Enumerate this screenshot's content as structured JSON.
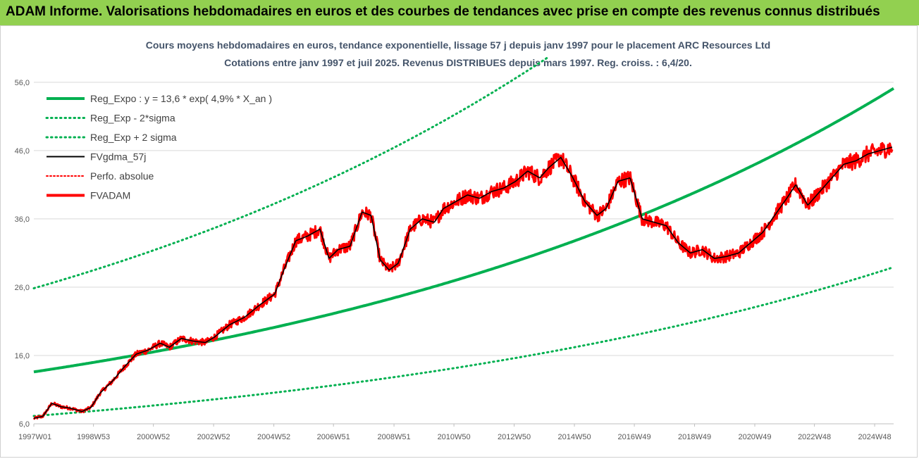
{
  "header": {
    "title": "ADAM Informe. Valorisations hebdomadaires en euros et des courbes de tendances avec prise en compte des revenus connus distribués"
  },
  "chart_data": {
    "type": "line",
    "title": "Cours moyens hebdomadaires en euros, tendance exponentielle, lissage 57 j depuis janv 1997 pour le placement ARC Resources Ltd",
    "subtitle": "Cotations entre janv 1997 et juil 2025. Revenus DISTRIBUES depuis mars 1997. Reg. croiss. : 6,4/20.",
    "xlabel": "",
    "ylabel": "",
    "x_range": [
      1997.0,
      2025.55
    ],
    "ylim": [
      6,
      60
    ],
    "y_ticks": [
      6,
      16,
      26,
      36,
      46,
      56
    ],
    "y_tick_labels": [
      "6,0",
      "16,0",
      "26,0",
      "36,0",
      "46,0",
      "56,0"
    ],
    "x_ticks": [
      1997.0,
      1998.98,
      2000.97,
      2002.97,
      2004.97,
      2006.95,
      2008.96,
      2010.95,
      2012.95,
      2014.95,
      2016.94,
      2018.94,
      2020.94,
      2022.92,
      2024.92
    ],
    "x_tick_labels": [
      "1997W01",
      "1998W53",
      "2000W52",
      "2002W52",
      "2004W52",
      "2006W51",
      "2008W51",
      "2010W50",
      "2012W50",
      "2014W50",
      "2016W49",
      "2018W49",
      "2020W49",
      "2022W48",
      "2024W48"
    ],
    "grid": "horizontal",
    "legend_position": "top-left",
    "regression": {
      "a": 13.6,
      "rate": 0.049,
      "sigma_factor_lower": 0.525,
      "sigma_factor_upper": 1.9
    },
    "series": [
      {
        "name": "Reg_Expo : y = 13,6 * exp( 4,9% *  X_an )",
        "style": "solid",
        "color": "#00b050",
        "kind": "reg"
      },
      {
        "name": "Reg_Exp - 2*sigma",
        "style": "dotted",
        "color": "#00b050",
        "kind": "reg_low"
      },
      {
        "name": "Reg_Exp + 2 sigma",
        "style": "dotted",
        "color": "#00b050",
        "kind": "reg_high"
      },
      {
        "name": "FVgdma_57j",
        "style": "solid",
        "color": "#000000",
        "kind": "smooth"
      },
      {
        "name": "Perfo. absolue",
        "style": "dotted",
        "color": "#ff0000",
        "kind": "perf"
      },
      {
        "name": "FVADAM",
        "style": "solid",
        "color": "#ff0000",
        "kind": "price",
        "x": [
          1997.0,
          1997.3,
          1997.6,
          1997.9,
          1998.2,
          1998.6,
          1998.9,
          1999.2,
          1999.6,
          2000.0,
          2000.4,
          2000.8,
          2001.2,
          2001.5,
          2001.9,
          2002.3,
          2002.7,
          2003.0,
          2003.5,
          2004.0,
          2004.5,
          2005.0,
          2005.3,
          2005.7,
          2006.1,
          2006.5,
          2006.8,
          2007.1,
          2007.5,
          2007.9,
          2008.2,
          2008.5,
          2008.8,
          2009.1,
          2009.5,
          2009.9,
          2010.3,
          2010.6,
          2011.0,
          2011.4,
          2011.8,
          2012.2,
          2012.6,
          2013.0,
          2013.4,
          2013.8,
          2014.1,
          2014.5,
          2014.9,
          2015.3,
          2015.7,
          2016.0,
          2016.4,
          2016.8,
          2017.2,
          2017.6,
          2018.0,
          2018.4,
          2018.8,
          2019.2,
          2019.6,
          2020.0,
          2020.4,
          2020.8,
          2021.2,
          2021.6,
          2022.0,
          2022.3,
          2022.7,
          2023.1,
          2023.5,
          2023.9,
          2024.3,
          2024.7,
          2025.1,
          2025.5
        ],
        "values": [
          6.8,
          7.1,
          9.0,
          8.5,
          8.3,
          7.8,
          8.4,
          10.5,
          12.2,
          14.3,
          16.2,
          16.8,
          17.8,
          17.2,
          18.5,
          18.1,
          17.9,
          18.7,
          20.5,
          21.6,
          23.4,
          25.0,
          28.5,
          32.8,
          33.5,
          34.5,
          30.2,
          31.5,
          32.0,
          37.0,
          36.5,
          30.0,
          28.5,
          29.5,
          34.5,
          36.0,
          35.5,
          37.5,
          38.5,
          39.5,
          39.0,
          40.0,
          40.5,
          41.5,
          43.0,
          42.0,
          43.5,
          45.0,
          42.0,
          38.5,
          36.5,
          37.5,
          41.5,
          42.0,
          36.0,
          35.5,
          35.0,
          32.5,
          31.0,
          31.5,
          30.2,
          30.5,
          31.0,
          32.5,
          34.0,
          36.5,
          39.0,
          41.0,
          38.0,
          40.0,
          42.0,
          44.0,
          44.5,
          45.5,
          46.0,
          46.5
        ]
      }
    ]
  }
}
